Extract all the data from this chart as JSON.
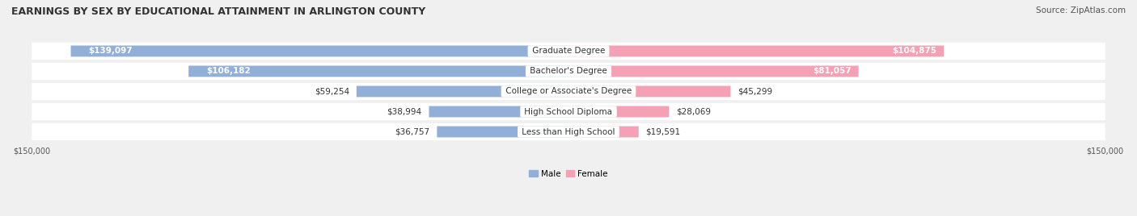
{
  "title": "EARNINGS BY SEX BY EDUCATIONAL ATTAINMENT IN ARLINGTON COUNTY",
  "source": "Source: ZipAtlas.com",
  "categories": [
    "Less than High School",
    "High School Diploma",
    "College or Associate's Degree",
    "Bachelor's Degree",
    "Graduate Degree"
  ],
  "male_values": [
    36757,
    38994,
    59254,
    106182,
    139097
  ],
  "female_values": [
    19591,
    28069,
    45299,
    81057,
    104875
  ],
  "max_value": 150000,
  "male_color": "#92afd7",
  "female_color": "#f4a0b5",
  "male_label": "Male",
  "female_label": "Female",
  "bg_color": "#f0f0f0",
  "row_bg_color": "#e8e8e8",
  "label_bg_color": "#ffffff",
  "title_fontsize": 9,
  "source_fontsize": 7.5,
  "value_fontsize": 7.5,
  "category_fontsize": 7.5,
  "legend_fontsize": 7.5,
  "axis_label_fontsize": 7.0
}
